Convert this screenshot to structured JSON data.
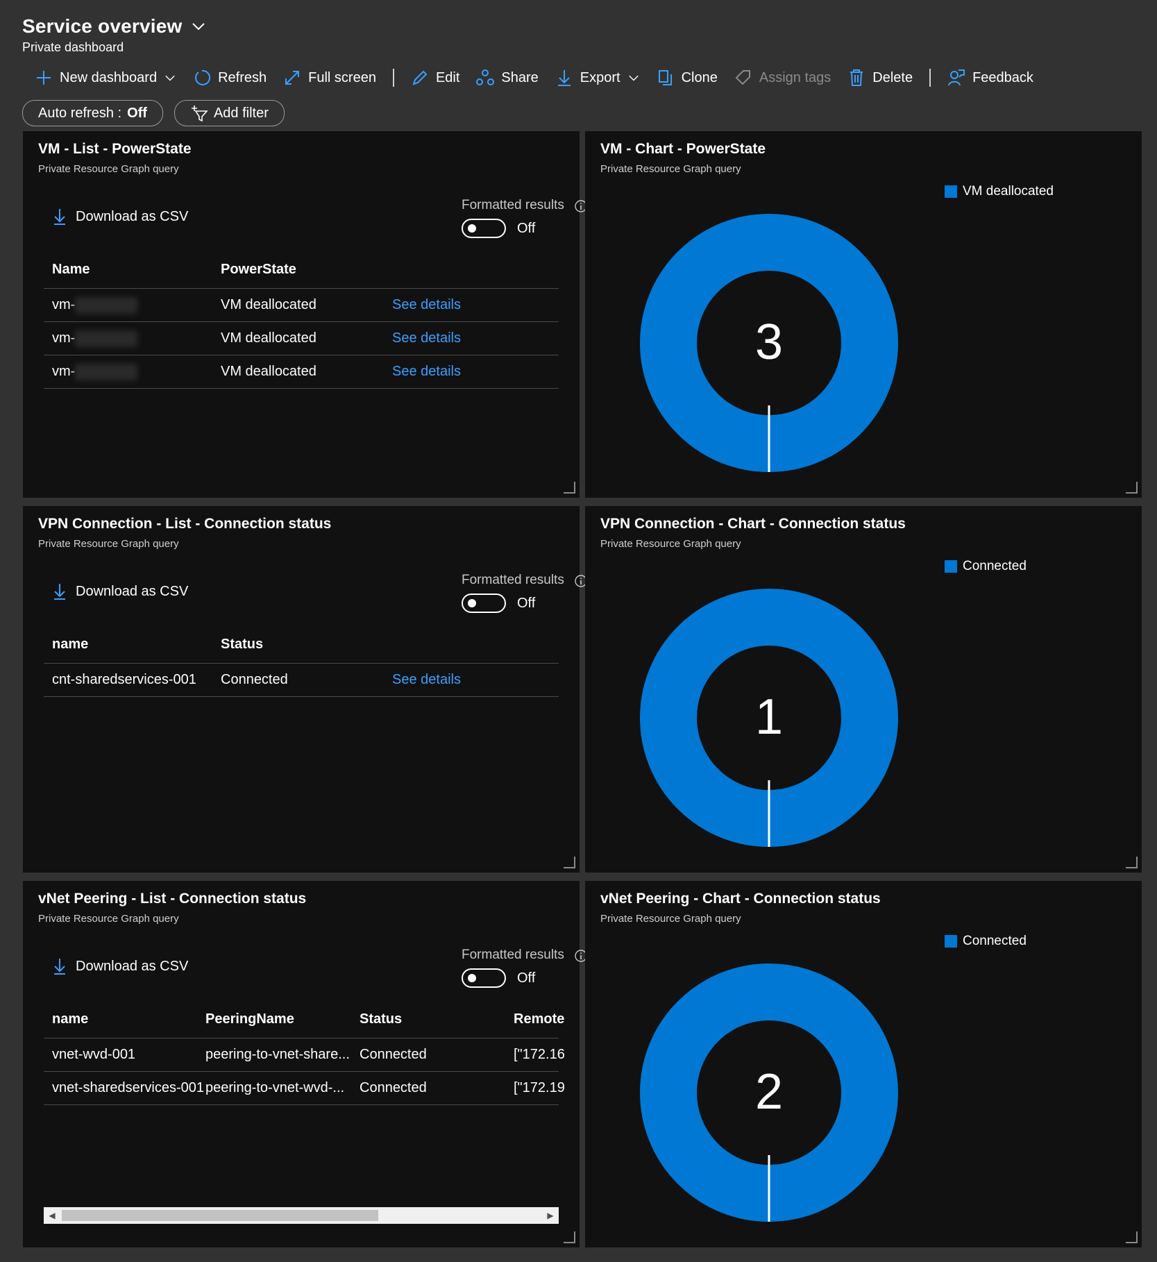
{
  "header": {
    "title": "Service overview",
    "subtitle": "Private dashboard"
  },
  "toolbar": {
    "new_dashboard": "New dashboard",
    "refresh": "Refresh",
    "full_screen": "Full screen",
    "edit": "Edit",
    "share": "Share",
    "export": "Export",
    "clone": "Clone",
    "assign_tags": "Assign tags",
    "delete": "Delete",
    "feedback": "Feedback"
  },
  "filters": {
    "auto_refresh_label": "Auto refresh :",
    "auto_refresh_value": "Off",
    "add_filter": "Add filter"
  },
  "common": {
    "subtitle": "Private Resource Graph query",
    "download_csv": "Download as CSV",
    "formatted_results": "Formatted results",
    "toggle_state": "Off",
    "see_details": "See details"
  },
  "colors": {
    "accent": "#0078d4",
    "link": "#3aa0ff",
    "tile_bg": "#111111",
    "page_bg": "#323232"
  },
  "tiles": {
    "vm_list": {
      "title": "VM - List - PowerState",
      "columns": [
        "Name",
        "PowerState"
      ],
      "rows": [
        {
          "name": "vm-",
          "state": "VM deallocated"
        },
        {
          "name": "vm-",
          "state": "VM deallocated"
        },
        {
          "name": "vm-",
          "state": "VM deallocated"
        }
      ]
    },
    "vm_chart": {
      "title": "VM - Chart - PowerState",
      "legend": "VM deallocated",
      "total": "3"
    },
    "vpn_list": {
      "title": "VPN Connection - List - Connection status",
      "columns": [
        "name",
        "Status"
      ],
      "rows": [
        {
          "name": "cnt-sharedservices-001",
          "status": "Connected"
        }
      ]
    },
    "vpn_chart": {
      "title": "VPN Connection - Chart - Connection status",
      "legend": "Connected",
      "total": "1"
    },
    "peer_list": {
      "title": "vNet Peering - List - Connection status",
      "columns": [
        "name",
        "PeeringName",
        "Status",
        "Remote"
      ],
      "rows": [
        {
          "name": "vnet-wvd-001",
          "peering": "peering-to-vnet-share...",
          "status": "Connected",
          "remote": "[\"172.16"
        },
        {
          "name": "vnet-sharedservices-001",
          "peering": "peering-to-vnet-wvd-...",
          "status": "Connected",
          "remote": "[\"172.19"
        }
      ]
    },
    "peer_chart": {
      "title": "vNet Peering - Chart - Connection status",
      "legend": "Connected",
      "total": "2"
    }
  },
  "chart_data": [
    {
      "type": "pie",
      "title": "VM - Chart - PowerState",
      "categories": [
        "VM deallocated"
      ],
      "values": [
        3
      ],
      "legend": "top-right"
    },
    {
      "type": "pie",
      "title": "VPN Connection - Chart - Connection status",
      "categories": [
        "Connected"
      ],
      "values": [
        1
      ],
      "legend": "top-right"
    },
    {
      "type": "pie",
      "title": "vNet Peering - Chart - Connection status",
      "categories": [
        "Connected"
      ],
      "values": [
        2
      ],
      "legend": "top-right"
    }
  ]
}
